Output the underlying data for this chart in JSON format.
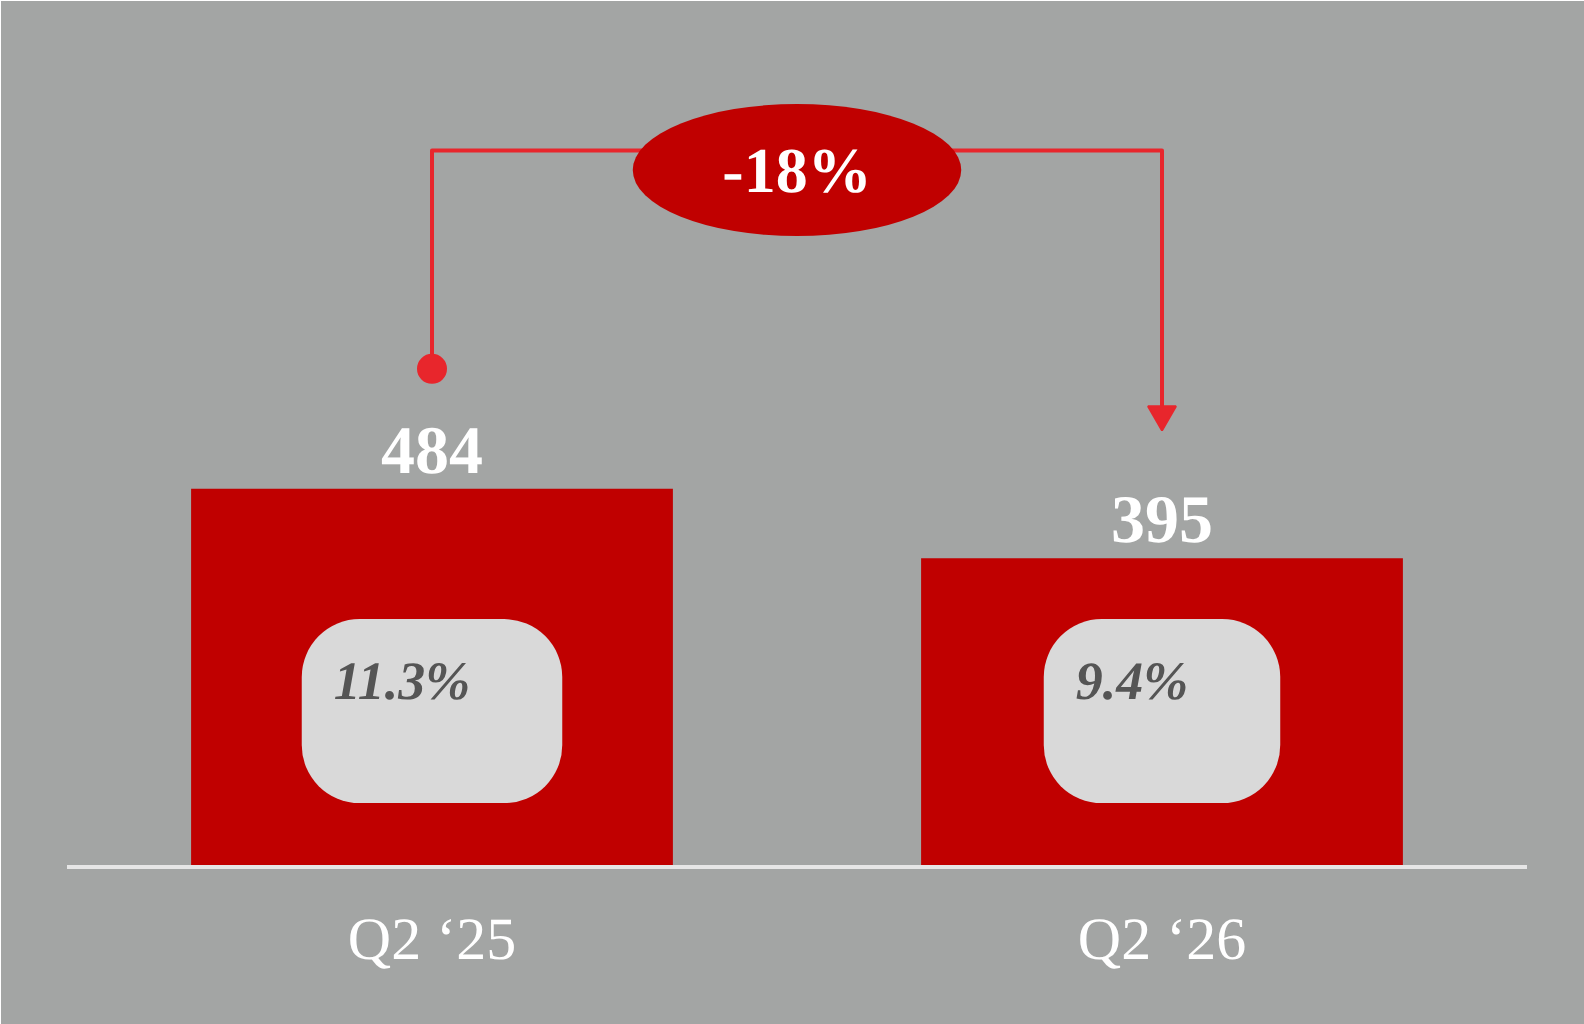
{
  "chart_data": {
    "type": "bar",
    "categories": [
      "Q2 ‘25",
      "Q2 ‘26"
    ],
    "values": [
      484,
      395
    ],
    "color": "#c00000",
    "data_labels": true,
    "annotations": [
      "11.3%",
      "9.4%",
      "-18%"
    ]
  }
}
